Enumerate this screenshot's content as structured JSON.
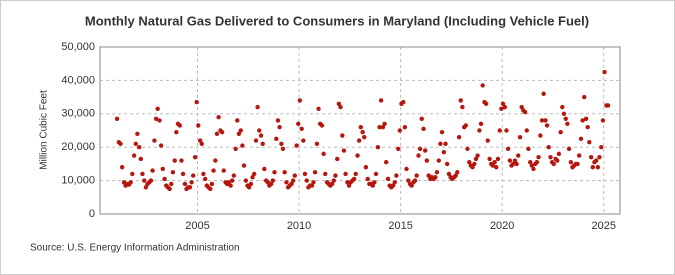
{
  "chart_data": {
    "type": "scatter",
    "title": "Monthly Natural Gas Delivered to Consumers in Maryland (Including Vehicle Fuel)",
    "y_label": "Million Cubic Feet",
    "source": "Source: U.S. Energy Information Administration",
    "color": "#b5170f",
    "grid": true,
    "xlim": [
      2000.2,
      2025.8
    ],
    "ylim": [
      0,
      50000
    ],
    "xticks": [
      2005,
      2010,
      2015,
      2020,
      2025
    ],
    "yticks": [
      {
        "value": 0,
        "label": "0"
      },
      {
        "value": 10000,
        "label": "10,000"
      },
      {
        "value": 20000,
        "label": "20,000"
      },
      {
        "value": 30000,
        "label": "30,000"
      },
      {
        "value": 40000,
        "label": "40,000"
      },
      {
        "value": 50000,
        "label": "50,000"
      }
    ],
    "x": [
      2001.04,
      2001.13,
      2001.21,
      2001.29,
      2001.38,
      2001.46,
      2001.54,
      2001.63,
      2001.71,
      2001.79,
      2001.88,
      2001.96,
      2002.04,
      2002.13,
      2002.21,
      2002.29,
      2002.38,
      2002.46,
      2002.54,
      2002.63,
      2002.71,
      2002.79,
      2002.88,
      2002.96,
      2003.04,
      2003.13,
      2003.21,
      2003.29,
      2003.38,
      2003.46,
      2003.54,
      2003.63,
      2003.71,
      2003.79,
      2003.88,
      2003.96,
      2004.04,
      2004.13,
      2004.21,
      2004.29,
      2004.38,
      2004.46,
      2004.54,
      2004.63,
      2004.71,
      2004.79,
      2004.88,
      2004.96,
      2005.04,
      2005.13,
      2005.21,
      2005.29,
      2005.38,
      2005.46,
      2005.54,
      2005.63,
      2005.71,
      2005.79,
      2005.88,
      2005.96,
      2006.04,
      2006.13,
      2006.21,
      2006.29,
      2006.38,
      2006.46,
      2006.54,
      2006.63,
      2006.71,
      2006.79,
      2006.88,
      2006.96,
      2007.04,
      2007.13,
      2007.21,
      2007.29,
      2007.38,
      2007.46,
      2007.54,
      2007.63,
      2007.71,
      2007.79,
      2007.88,
      2007.96,
      2008.04,
      2008.13,
      2008.21,
      2008.29,
      2008.38,
      2008.46,
      2008.54,
      2008.63,
      2008.71,
      2008.79,
      2008.88,
      2008.96,
      2009.04,
      2009.13,
      2009.21,
      2009.29,
      2009.38,
      2009.46,
      2009.54,
      2009.63,
      2009.71,
      2009.79,
      2009.88,
      2009.96,
      2010.04,
      2010.13,
      2010.21,
      2010.29,
      2010.38,
      2010.46,
      2010.54,
      2010.63,
      2010.71,
      2010.79,
      2010.88,
      2010.96,
      2011.04,
      2011.13,
      2011.21,
      2011.29,
      2011.38,
      2011.46,
      2011.54,
      2011.63,
      2011.71,
      2011.79,
      2011.88,
      2011.96,
      2012.04,
      2012.13,
      2012.21,
      2012.29,
      2012.38,
      2012.46,
      2012.54,
      2012.63,
      2012.71,
      2012.79,
      2012.88,
      2012.96,
      2013.04,
      2013.13,
      2013.21,
      2013.29,
      2013.38,
      2013.46,
      2013.54,
      2013.63,
      2013.71,
      2013.79,
      2013.88,
      2013.96,
      2014.04,
      2014.13,
      2014.21,
      2014.29,
      2014.38,
      2014.46,
      2014.54,
      2014.63,
      2014.71,
      2014.79,
      2014.88,
      2014.96,
      2015.04,
      2015.13,
      2015.21,
      2015.29,
      2015.38,
      2015.46,
      2015.54,
      2015.63,
      2015.71,
      2015.79,
      2015.88,
      2015.96,
      2016.04,
      2016.13,
      2016.21,
      2016.29,
      2016.38,
      2016.46,
      2016.54,
      2016.63,
      2016.71,
      2016.79,
      2016.88,
      2016.96,
      2017.04,
      2017.13,
      2017.21,
      2017.29,
      2017.38,
      2017.46,
      2017.54,
      2017.63,
      2017.71,
      2017.79,
      2017.88,
      2017.96,
      2018.04,
      2018.13,
      2018.21,
      2018.29,
      2018.38,
      2018.46,
      2018.54,
      2018.63,
      2018.71,
      2018.79,
      2018.88,
      2018.96,
      2019.04,
      2019.13,
      2019.21,
      2019.29,
      2019.38,
      2019.46,
      2019.54,
      2019.63,
      2019.71,
      2019.79,
      2019.88,
      2019.96,
      2020.04,
      2020.13,
      2020.21,
      2020.29,
      2020.38,
      2020.46,
      2020.54,
      2020.63,
      2020.71,
      2020.79,
      2020.88,
      2020.96,
      2021.04,
      2021.13,
      2021.21,
      2021.29,
      2021.38,
      2021.46,
      2021.54,
      2021.63,
      2021.71,
      2021.79,
      2021.88,
      2021.96,
      2022.04,
      2022.13,
      2022.21,
      2022.29,
      2022.38,
      2022.46,
      2022.54,
      2022.63,
      2022.71,
      2022.79,
      2022.88,
      2022.96,
      2023.04,
      2023.13,
      2023.21,
      2023.29,
      2023.38,
      2023.46,
      2023.54,
      2023.63,
      2023.71,
      2023.79,
      2023.88,
      2023.96,
      2024.04,
      2024.13,
      2024.21,
      2024.29,
      2024.38,
      2024.46,
      2024.54,
      2024.63,
      2024.71,
      2024.79,
      2024.88,
      2024.96,
      2025.04,
      2025.13,
      2025.21
    ],
    "values": [
      28500,
      21500,
      21000,
      14000,
      9500,
      8500,
      9000,
      8800,
      9500,
      12000,
      17500,
      21000,
      24000,
      20000,
      16500,
      12000,
      10000,
      8000,
      9000,
      9500,
      10000,
      13000,
      22000,
      28500,
      31500,
      28000,
      20500,
      13500,
      10500,
      8500,
      8000,
      7500,
      9000,
      12500,
      16000,
      24500,
      27000,
      26500,
      16000,
      12000,
      9000,
      7500,
      8000,
      8000,
      9500,
      11500,
      17000,
      33500,
      26500,
      22000,
      21000,
      12000,
      10500,
      8500,
      8000,
      7500,
      9000,
      13000,
      16000,
      24000,
      29000,
      25000,
      24500,
      13000,
      9500,
      9000,
      9500,
      8500,
      10000,
      11500,
      19500,
      28000,
      24000,
      25000,
      20500,
      14500,
      10000,
      8500,
      8000,
      9000,
      11000,
      12000,
      22000,
      32000,
      25000,
      23500,
      21000,
      13500,
      10000,
      9500,
      8500,
      9000,
      10000,
      12500,
      22500,
      28000,
      26000,
      21000,
      19500,
      12500,
      9500,
      8000,
      8500,
      9000,
      10000,
      11500,
      20500,
      27000,
      34000,
      25500,
      22000,
      12000,
      10000,
      8000,
      8500,
      8500,
      9500,
      12500,
      21000,
      31500,
      27000,
      26500,
      18000,
      12000,
      9500,
      9000,
      8500,
      9000,
      10000,
      11500,
      16500,
      33000,
      32000,
      23500,
      19000,
      12000,
      9500,
      8500,
      9500,
      10000,
      10500,
      12000,
      17500,
      22000,
      26000,
      24500,
      23000,
      14000,
      10500,
      9000,
      9000,
      8500,
      9500,
      12000,
      20000,
      26000,
      34000,
      26000,
      27000,
      15500,
      10500,
      8500,
      8000,
      8500,
      9500,
      11500,
      19500,
      25000,
      33000,
      33500,
      26000,
      13500,
      10000,
      9000,
      8500,
      9500,
      10000,
      11500,
      17500,
      19500,
      28500,
      25500,
      19000,
      16000,
      11500,
      10500,
      11000,
      10500,
      11000,
      12500,
      16000,
      21000,
      24500,
      18500,
      21000,
      15000,
      12000,
      11000,
      10500,
      11000,
      11500,
      12500,
      23000,
      34000,
      32000,
      26000,
      26500,
      19500,
      15500,
      14500,
      14000,
      15000,
      16500,
      17500,
      25000,
      27000,
      38500,
      33500,
      33000,
      22000,
      16500,
      15000,
      14500,
      15500,
      14000,
      16500,
      25000,
      31500,
      33000,
      32000,
      25000,
      19500,
      16000,
      14500,
      15000,
      16000,
      15000,
      17500,
      23000,
      32000,
      31000,
      30500,
      25000,
      19500,
      15500,
      14500,
      13500,
      15000,
      15500,
      17000,
      23500,
      28000,
      36000,
      28000,
      26500,
      20000,
      17000,
      15500,
      15000,
      16500,
      16000,
      18000,
      24500,
      32000,
      30000,
      28500,
      27000,
      19500,
      15500,
      14000,
      14500,
      15000,
      15000,
      17500,
      22500,
      28000,
      35000,
      28500,
      26000,
      21500,
      17000,
      14000,
      15500,
      16000,
      14000,
      17000,
      20000,
      28000,
      42500,
      32500,
      32500
    ]
  }
}
